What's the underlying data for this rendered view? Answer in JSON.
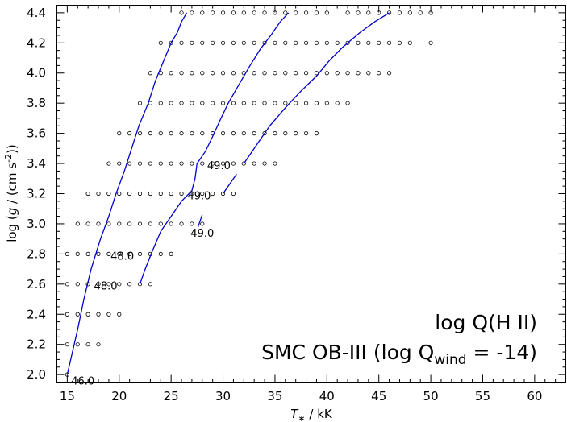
{
  "chart_data": {
    "type": "line",
    "title": "log Q(H II)",
    "subtitle": {
      "prefix": "SMC OB-III (log Q",
      "subscript": "wind",
      "suffix": " = -14)"
    },
    "xlabel": {
      "prefix": "T",
      "subscript": "∗",
      "suffix": " / kK"
    },
    "ylabel": {
      "prefix": "log (",
      "italic": "g",
      "middle": " / (cm s",
      "superscript": "-2",
      "suffix": "))"
    },
    "xlim": [
      14,
      63
    ],
    "ylim": [
      1.95,
      4.45
    ],
    "xticks": [
      15,
      20,
      25,
      30,
      35,
      40,
      45,
      50,
      55,
      60
    ],
    "yticks": [
      2.0,
      2.2,
      2.4,
      2.6,
      2.8,
      3.0,
      3.2,
      3.4,
      3.6,
      3.8,
      4.0,
      4.2,
      4.4
    ],
    "grid": false,
    "line_color": "#0000cc",
    "grid_models": [
      {
        "logg": 4.4,
        "teff": [
          26,
          27,
          28,
          29,
          30,
          31,
          32,
          33,
          34,
          35,
          36,
          37,
          38,
          39,
          40,
          42,
          43,
          44,
          45,
          46,
          47,
          48,
          49,
          50
        ]
      },
      {
        "logg": 4.2,
        "teff": [
          24,
          25,
          26,
          27,
          28,
          29,
          30,
          31,
          32,
          33,
          34,
          35,
          36,
          37,
          38,
          39,
          40,
          41,
          42,
          43,
          44,
          45,
          46,
          47,
          48,
          50
        ]
      },
      {
        "logg": 4.0,
        "teff": [
          23,
          24,
          25,
          26,
          27,
          28,
          29,
          30,
          31,
          32,
          33,
          34,
          35,
          36,
          37,
          38,
          39,
          40,
          41,
          42,
          43,
          44,
          45,
          46
        ]
      },
      {
        "logg": 3.8,
        "teff": [
          22,
          23,
          24,
          25,
          26,
          27,
          28,
          29,
          30,
          31,
          32,
          33,
          34,
          35,
          36,
          37,
          38,
          39,
          40,
          41,
          42
        ]
      },
      {
        "logg": 3.6,
        "teff": [
          20,
          21,
          22,
          23,
          24,
          25,
          26,
          27,
          28,
          29,
          30,
          31,
          32,
          33,
          34,
          35,
          36,
          37,
          38,
          39
        ]
      },
      {
        "logg": 3.4,
        "teff": [
          19,
          20,
          21,
          22,
          23,
          24,
          25,
          26,
          27,
          28,
          29,
          30,
          31,
          32,
          33,
          34,
          35
        ]
      },
      {
        "logg": 3.2,
        "teff": [
          17,
          18,
          19,
          20,
          21,
          22,
          23,
          24,
          25,
          26,
          27,
          28,
          29,
          30,
          31
        ]
      },
      {
        "logg": 3.0,
        "teff": [
          16,
          17,
          18,
          19,
          20,
          21,
          22,
          23,
          24,
          25,
          26,
          27,
          28
        ]
      },
      {
        "logg": 2.8,
        "teff": [
          15,
          16,
          17,
          18,
          19,
          20,
          21,
          22,
          23,
          24,
          25
        ]
      },
      {
        "logg": 2.6,
        "teff": [
          15,
          16,
          17,
          18,
          19,
          20,
          21,
          22,
          23
        ]
      },
      {
        "logg": 2.4,
        "teff": [
          15,
          16,
          17,
          18,
          19,
          20
        ]
      },
      {
        "logg": 2.2,
        "teff": [
          15,
          16,
          17,
          18
        ]
      },
      {
        "logg": 2.0,
        "teff": [
          15
        ]
      }
    ],
    "contours": [
      {
        "value": "46.0",
        "points": [
          [
            15.0,
            2.0
          ],
          [
            15.5,
            2.15
          ],
          [
            16.0,
            2.3
          ],
          [
            16.6,
            2.5
          ],
          [
            17.3,
            2.7
          ],
          [
            18.2,
            2.9
          ],
          [
            19.0,
            3.05
          ],
          [
            19.7,
            3.2
          ],
          [
            20.5,
            3.35
          ],
          [
            21.2,
            3.5
          ],
          [
            21.9,
            3.65
          ],
          [
            22.8,
            3.8
          ],
          [
            23.5,
            3.95
          ],
          [
            24.4,
            4.1
          ],
          [
            25.0,
            4.2
          ],
          [
            25.6,
            4.27
          ],
          [
            26.0,
            4.34
          ],
          [
            26.5,
            4.4
          ]
        ]
      },
      {
        "value": "48.0",
        "points": [
          [
            22.0,
            2.6
          ],
          [
            22.5,
            2.7
          ],
          [
            23.2,
            2.82
          ],
          [
            24.0,
            2.95
          ],
          [
            25.0,
            3.05
          ],
          [
            26.0,
            3.15
          ],
          [
            27.0,
            3.22
          ],
          [
            27.3,
            3.3
          ],
          [
            27.5,
            3.4
          ],
          [
            28.3,
            3.48
          ],
          [
            29.0,
            3.58
          ],
          [
            29.8,
            3.7
          ],
          [
            30.5,
            3.8
          ],
          [
            31.5,
            3.92
          ],
          [
            32.6,
            4.05
          ],
          [
            33.6,
            4.16
          ],
          [
            34.6,
            4.25
          ],
          [
            35.5,
            4.34
          ],
          [
            36.3,
            4.4
          ]
        ]
      },
      {
        "value": "49.0",
        "points": [
          [
            30.0,
            3.2
          ],
          [
            30.7,
            3.27
          ],
          [
            31.3,
            3.33
          ]
        ]
      },
      {
        "value": "49.0",
        "points": [
          [
            32.0,
            3.4
          ],
          [
            33.2,
            3.52
          ],
          [
            34.5,
            3.65
          ],
          [
            36.0,
            3.77
          ],
          [
            37.5,
            3.88
          ],
          [
            39.0,
            3.98
          ],
          [
            40.2,
            4.08
          ],
          [
            41.5,
            4.17
          ],
          [
            43.2,
            4.27
          ],
          [
            44.6,
            4.34
          ],
          [
            46.0,
            4.4
          ]
        ]
      },
      {
        "value": "48.0",
        "points": [
          [
            27.6,
            2.98
          ],
          [
            28.0,
            3.06
          ]
        ]
      }
    ],
    "contour_labels": [
      {
        "text": "46.0",
        "x": 16.5,
        "y": 1.96
      },
      {
        "text": "48.0",
        "x": 18.7,
        "y": 2.59
      },
      {
        "text": "48.0",
        "x": 20.3,
        "y": 2.79
      },
      {
        "text": "49.0",
        "x": 28.0,
        "y": 2.94
      },
      {
        "text": "49.0",
        "x": 27.7,
        "y": 3.19
      },
      {
        "text": "49.0",
        "x": 29.6,
        "y": 3.39
      }
    ]
  }
}
